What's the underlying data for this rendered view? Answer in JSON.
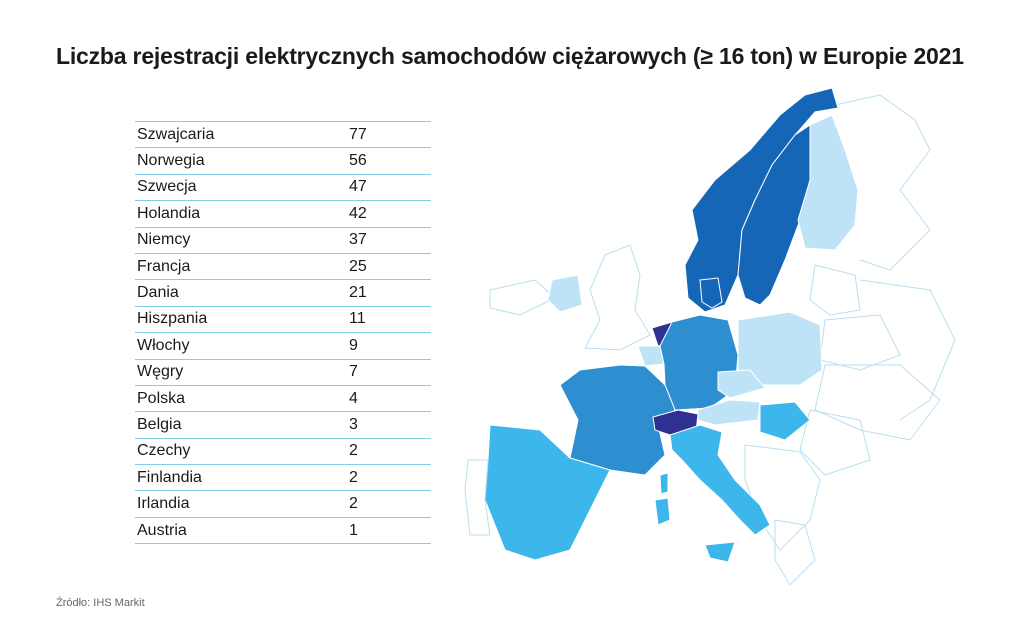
{
  "title": "Liczba rejestracji elektrycznych samochodów ciężarowych (≥ 16 ton) w Europie 2021",
  "table": {
    "rows": [
      {
        "country": "Szwajcaria",
        "value": "77"
      },
      {
        "country": "Norwegia",
        "value": "56"
      },
      {
        "country": "Szwecja",
        "value": "47"
      },
      {
        "country": "Holandia",
        "value": "42"
      },
      {
        "country": "Niemcy",
        "value": "37"
      },
      {
        "country": "Francja",
        "value": "25"
      },
      {
        "country": "Dania",
        "value": "21"
      },
      {
        "country": "Hiszpania",
        "value": "11"
      },
      {
        "country": "Włochy",
        "value": "9"
      },
      {
        "country": "Węgry",
        "value": "7"
      },
      {
        "country": "Polska",
        "value": "4"
      },
      {
        "country": "Belgia",
        "value": "3"
      },
      {
        "country": "Czechy",
        "value": "2"
      },
      {
        "country": "Finlandia",
        "value": "2"
      },
      {
        "country": "Irlandia",
        "value": "2"
      },
      {
        "country": "Austria",
        "value": "1"
      }
    ]
  },
  "source": "Źródło: IHS Markit",
  "colors": {
    "darkest": "#2e3192",
    "dark": "#1566b7",
    "medium": "#2d8fd0",
    "light": "#3db6ec",
    "lightest": "#bfe3f6",
    "border": "#7fd0e6"
  }
}
